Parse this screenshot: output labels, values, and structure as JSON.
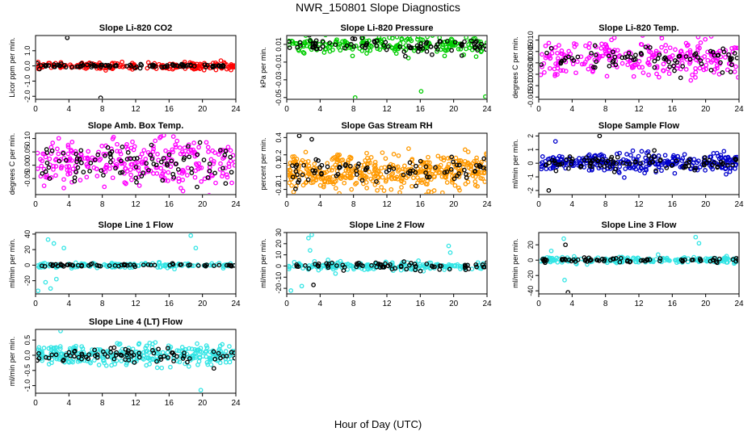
{
  "figure": {
    "title": "NWR_150801  Slope Diagnostics",
    "xlabel": "Hour of Day (UTC)"
  },
  "chart_data": [
    {
      "type": "scatter",
      "title": "Slope Li-820 CO2",
      "ylabel": "Licor ppm per min.",
      "xlim": [
        0,
        24
      ],
      "ylim": [
        -2.2,
        2.0
      ],
      "xticks": [
        0,
        4,
        8,
        12,
        16,
        20,
        24
      ],
      "yticks": [
        {
          "v": 1,
          "label": "1.0"
        },
        {
          "v": 0,
          "label": "0.0"
        },
        {
          "v": -1,
          "label": "-1.0"
        },
        {
          "v": -2,
          "label": "-2.0"
        }
      ],
      "series": [
        {
          "color": "#ff0000",
          "band": [
            0,
            0.12
          ],
          "n": 200
        },
        {
          "color": "#000000",
          "band": [
            0,
            0.06
          ],
          "n": 90
        }
      ],
      "outliers": [
        {
          "x": 3.8,
          "y": 1.85,
          "color": "#000000"
        },
        {
          "x": 7.8,
          "y": -2.1,
          "color": "#000000"
        }
      ]
    },
    {
      "type": "scatter",
      "title": "Slope Li-820 Pressure",
      "ylabel": "kPa per min.",
      "xlim": [
        0,
        24
      ],
      "ylim": [
        -0.052,
        0.02
      ],
      "xticks": [
        0,
        4,
        8,
        12,
        16,
        20,
        24
      ],
      "yticks": [
        {
          "v": 0.01,
          "label": "0.01"
        },
        {
          "v": -0.01,
          "label": "-0.01"
        },
        {
          "v": -0.03,
          "label": "-0.03"
        },
        {
          "v": -0.05,
          "label": "-0.05"
        }
      ],
      "series": [
        {
          "color": "#00cc00",
          "band": [
            0.009,
            0.005
          ],
          "n": 200
        },
        {
          "color": "#000000",
          "band": [
            0.008,
            0.004
          ],
          "n": 90
        }
      ],
      "outliers": [
        {
          "x": 8.2,
          "y": -0.05,
          "color": "#00cc00"
        },
        {
          "x": 16.1,
          "y": -0.043,
          "color": "#00cc00"
        },
        {
          "x": 23.8,
          "y": -0.049,
          "color": "#00cc00"
        },
        {
          "x": 21.5,
          "y": 0.018,
          "color": "#00cc00"
        }
      ]
    },
    {
      "type": "scatter",
      "title": "Slope Li-820 Temp.",
      "ylabel": "degrees C per min.",
      "xlim": [
        0,
        24
      ],
      "ylim": [
        -0.016,
        0.012
      ],
      "xticks": [
        0,
        4,
        8,
        12,
        16,
        20,
        24
      ],
      "yticks": [
        {
          "v": 0.01,
          "label": "0.010"
        },
        {
          "v": 0.005,
          "label": "0.005"
        },
        {
          "v": 0,
          "label": "0.000"
        },
        {
          "v": -0.005,
          "label": "-0.005"
        },
        {
          "v": -0.01,
          "label": "-0.010"
        },
        {
          "v": -0.015,
          "label": "-0.015"
        }
      ],
      "series": [
        {
          "color": "#ff00ff",
          "band": [
            0.002,
            0.004
          ],
          "n": 260
        },
        {
          "color": "#000000",
          "band": [
            0.002,
            0.003
          ],
          "n": 80
        }
      ],
      "outliers": []
    },
    {
      "type": "scatter",
      "title": "Slope Amb. Box Temp.",
      "ylabel": "degrees C per min.",
      "xlim": [
        0,
        24
      ],
      "ylim": [
        -0.11,
        0.12
      ],
      "xticks": [
        0,
        4,
        8,
        12,
        16,
        20,
        24
      ],
      "yticks": [
        {
          "v": 0.1,
          "label": "0.10"
        },
        {
          "v": 0.05,
          "label": "0.05"
        },
        {
          "v": 0,
          "label": "0.00"
        },
        {
          "v": -0.05,
          "label": "-0.05"
        }
      ],
      "series": [
        {
          "color": "#ff00ff",
          "band": [
            0.005,
            0.045
          ],
          "n": 280
        },
        {
          "color": "#000000",
          "band": [
            0.01,
            0.035
          ],
          "n": 90
        }
      ],
      "outliers": []
    },
    {
      "type": "scatter",
      "title": "Slope Gas Stream RH",
      "ylabel": "percent per min.",
      "xlim": [
        0,
        24
      ],
      "ylim": [
        -0.26,
        0.45
      ],
      "xticks": [
        0,
        4,
        8,
        12,
        16,
        20,
        24
      ],
      "yticks": [
        {
          "v": 0.4,
          "label": "0.4"
        },
        {
          "v": 0.2,
          "label": "0.2"
        },
        {
          "v": 0.1,
          "label": "0.1"
        },
        {
          "v": -0.1,
          "label": "-0.1"
        },
        {
          "v": -0.2,
          "label": "-0.2"
        }
      ],
      "series": [
        {
          "color": "#ff9900",
          "band": [
            0.0,
            0.1
          ],
          "n": 420
        },
        {
          "color": "#000000",
          "band": [
            0.0,
            0.08
          ],
          "n": 80
        }
      ],
      "outliers": [
        {
          "x": 1.5,
          "y": 0.42,
          "color": "#000000"
        },
        {
          "x": 3.0,
          "y": 0.38,
          "color": "#000000"
        }
      ]
    },
    {
      "type": "scatter",
      "title": "Slope Sample Flow",
      "ylabel": "ml/min per min.",
      "xlim": [
        0,
        24
      ],
      "ylim": [
        -2.3,
        2.2
      ],
      "xticks": [
        0,
        4,
        8,
        12,
        16,
        20,
        24
      ],
      "yticks": [
        {
          "v": 2,
          "label": "2"
        },
        {
          "v": 1,
          "label": "1"
        },
        {
          "v": 0,
          "label": "0"
        },
        {
          "v": -1,
          "label": "-1"
        },
        {
          "v": -2,
          "label": "-2"
        }
      ],
      "series": [
        {
          "color": "#0000cc",
          "band": [
            0.0,
            0.35
          ],
          "n": 300
        },
        {
          "color": "#000000",
          "band": [
            0.0,
            0.3
          ],
          "n": 90
        }
      ],
      "outliers": [
        {
          "x": 7.3,
          "y": 2.0,
          "color": "#000000"
        },
        {
          "x": 1.2,
          "y": -2.0,
          "color": "#000000"
        },
        {
          "x": 2.0,
          "y": 1.6,
          "color": "#0000cc"
        }
      ]
    },
    {
      "type": "scatter",
      "title": "Slope Line 1 Flow",
      "ylabel": "ml/min per min.",
      "xlim": [
        0,
        24
      ],
      "ylim": [
        -37,
        42
      ],
      "xticks": [
        0,
        4,
        8,
        12,
        16,
        20,
        24
      ],
      "yticks": [
        {
          "v": 40,
          "label": "40"
        },
        {
          "v": 20,
          "label": "20"
        },
        {
          "v": 0,
          "label": "0"
        },
        {
          "v": -20,
          "label": "-20"
        }
      ],
      "series": [
        {
          "color": "#33e5e5",
          "band": [
            0,
            1.5
          ],
          "n": 160
        },
        {
          "color": "#000000",
          "band": [
            0,
            0.8
          ],
          "n": 60
        }
      ],
      "outliers": [
        {
          "x": 1.5,
          "y": 33,
          "color": "#33e5e5"
        },
        {
          "x": 2.2,
          "y": 28,
          "color": "#33e5e5"
        },
        {
          "x": 1.2,
          "y": -22,
          "color": "#33e5e5"
        },
        {
          "x": 1.8,
          "y": -30,
          "color": "#33e5e5"
        },
        {
          "x": 2.5,
          "y": -18,
          "color": "#33e5e5"
        },
        {
          "x": 0.3,
          "y": -33,
          "color": "#33e5e5"
        },
        {
          "x": 18.6,
          "y": 38,
          "color": "#33e5e5"
        },
        {
          "x": 19.2,
          "y": 22,
          "color": "#33e5e5"
        },
        {
          "x": 3.4,
          "y": 22,
          "color": "#33e5e5"
        }
      ]
    },
    {
      "type": "scatter",
      "title": "Slope Line 2 Flow",
      "ylabel": "ml/min per min.",
      "xlim": [
        0,
        24
      ],
      "ylim": [
        -25,
        30
      ],
      "xticks": [
        0,
        4,
        8,
        12,
        16,
        20,
        24
      ],
      "yticks": [
        {
          "v": 30,
          "label": "30"
        },
        {
          "v": 20,
          "label": "20"
        },
        {
          "v": 10,
          "label": "10"
        },
        {
          "v": 0,
          "label": "0"
        },
        {
          "v": -10,
          "label": "-10"
        },
        {
          "v": -20,
          "label": "-20"
        }
      ],
      "series": [
        {
          "color": "#33e5e5",
          "band": [
            0,
            2.0
          ],
          "n": 200
        },
        {
          "color": "#000000",
          "band": [
            0,
            1.5
          ],
          "n": 70
        }
      ],
      "outliers": [
        {
          "x": 0.5,
          "y": -22,
          "color": "#33e5e5"
        },
        {
          "x": 1.8,
          "y": -18,
          "color": "#33e5e5"
        },
        {
          "x": 2.6,
          "y": 25,
          "color": "#33e5e5"
        },
        {
          "x": 3.0,
          "y": 28,
          "color": "#33e5e5"
        },
        {
          "x": 3.2,
          "y": -17,
          "color": "#000000"
        },
        {
          "x": 2.8,
          "y": 14,
          "color": "#33e5e5"
        },
        {
          "x": 19.4,
          "y": 18,
          "color": "#33e5e5"
        },
        {
          "x": 19.6,
          "y": 12,
          "color": "#33e5e5"
        }
      ]
    },
    {
      "type": "scatter",
      "title": "Slope Line 3 Flow",
      "ylabel": "ml/min per min.",
      "xlim": [
        0,
        24
      ],
      "ylim": [
        -44,
        36
      ],
      "xticks": [
        0,
        4,
        8,
        12,
        16,
        20,
        24
      ],
      "yticks": [
        {
          "v": 20,
          "label": "20"
        },
        {
          "v": 0,
          "label": "0"
        },
        {
          "v": -20,
          "label": "-20"
        },
        {
          "v": -40,
          "label": "-40"
        }
      ],
      "series": [
        {
          "color": "#33e5e5",
          "band": [
            0,
            2.0
          ],
          "n": 200
        },
        {
          "color": "#000000",
          "band": [
            0,
            1.5
          ],
          "n": 70
        }
      ],
      "outliers": [
        {
          "x": 3.0,
          "y": 28,
          "color": "#33e5e5"
        },
        {
          "x": 3.2,
          "y": 20,
          "color": "#000000"
        },
        {
          "x": 3.5,
          "y": -42,
          "color": "#000000"
        },
        {
          "x": 3.1,
          "y": -26,
          "color": "#33e5e5"
        },
        {
          "x": 1.5,
          "y": 12,
          "color": "#33e5e5"
        },
        {
          "x": 18.8,
          "y": 30,
          "color": "#33e5e5"
        },
        {
          "x": 19.2,
          "y": 22,
          "color": "#33e5e5"
        }
      ]
    },
    {
      "type": "scatter",
      "title": "Slope Line 4 (LT) Flow",
      "ylabel": "ml/min per min.",
      "xlim": [
        0,
        24
      ],
      "ylim": [
        -1.25,
        0.85
      ],
      "xticks": [
        0,
        4,
        8,
        12,
        16,
        20,
        24
      ],
      "yticks": [
        {
          "v": 0.5,
          "label": "0.5"
        },
        {
          "v": 0,
          "label": "0.0"
        },
        {
          "v": -0.5,
          "label": "-0.5"
        },
        {
          "v": -1,
          "label": "-1.0"
        }
      ],
      "series": [
        {
          "color": "#33e5e5",
          "band": [
            0.0,
            0.17
          ],
          "n": 320
        },
        {
          "color": "#000000",
          "band": [
            0.0,
            0.14
          ],
          "n": 80
        }
      ],
      "outliers": [
        {
          "x": 19.8,
          "y": -1.15,
          "color": "#33e5e5"
        },
        {
          "x": 3.0,
          "y": 0.8,
          "color": "#33e5e5"
        }
      ]
    }
  ]
}
